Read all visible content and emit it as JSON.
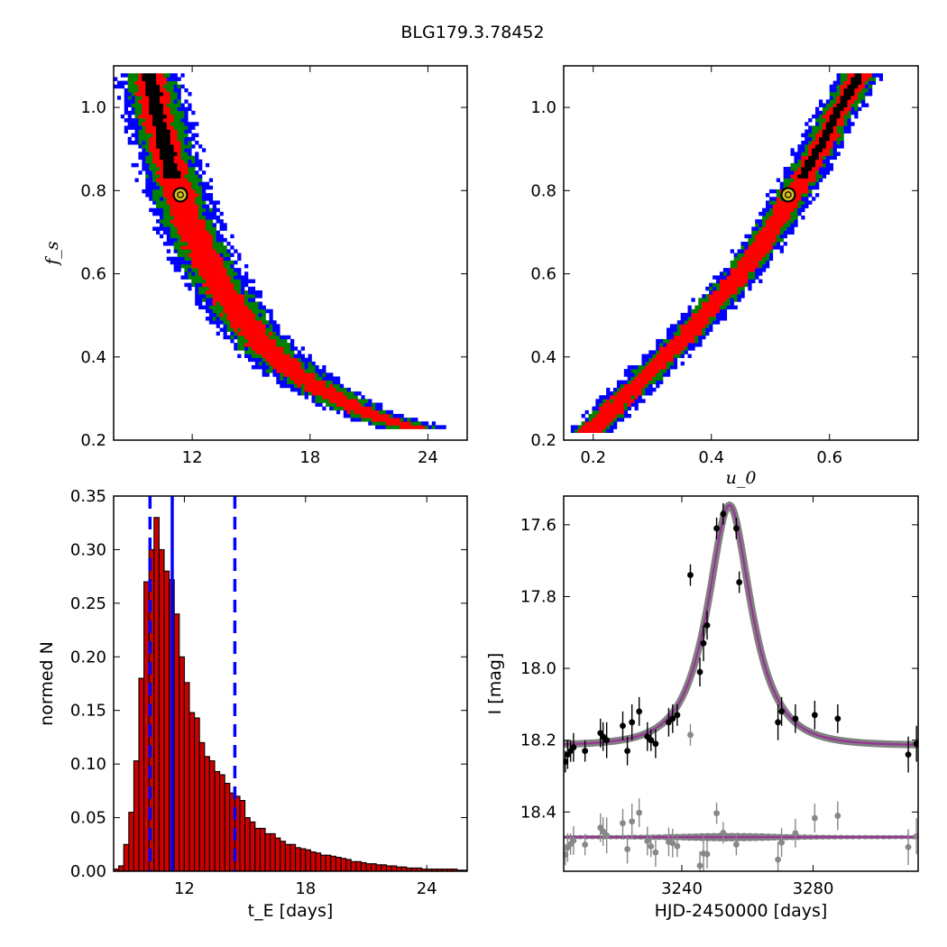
{
  "figure": {
    "title": "BLG179.3.78452"
  },
  "chart_data": [
    {
      "id": "fs_vs_tE",
      "type": "heatmap",
      "title": "",
      "xlabel": "",
      "ylabel": "f_s",
      "xlim": [
        8.0,
        26.0
      ],
      "ylim": [
        0.2,
        1.1
      ],
      "xticks": [
        12,
        18,
        24
      ],
      "yticks": [
        0.2,
        0.4,
        0.6,
        0.8,
        1.0
      ],
      "xtick_labels": [
        "12",
        "18",
        "24"
      ],
      "ytick_labels": [
        "0.2",
        "0.4",
        "0.6",
        "0.8",
        "1.0"
      ],
      "levels": [
        "black",
        "red",
        "green",
        "blue"
      ],
      "level_colors": [
        "#000000",
        "#ff0000",
        "#008000",
        "#0000ff"
      ],
      "ridge": [
        [
          9.8,
          1.08
        ],
        [
          10.4,
          0.95
        ],
        [
          11.0,
          0.84
        ],
        [
          11.6,
          0.75
        ],
        [
          12.4,
          0.66
        ],
        [
          13.3,
          0.58
        ],
        [
          14.4,
          0.5
        ],
        [
          15.6,
          0.43
        ],
        [
          17.0,
          0.37
        ],
        [
          18.6,
          0.32
        ],
        [
          20.2,
          0.28
        ],
        [
          21.8,
          0.25
        ],
        [
          23.2,
          0.23
        ]
      ],
      "widths": {
        "black": 0.35,
        "red": 0.75,
        "green": 1.15,
        "blue": 1.6
      },
      "best_fit": {
        "x": 11.4,
        "y": 0.79
      }
    },
    {
      "id": "fs_vs_u0",
      "type": "heatmap",
      "title": "",
      "xlabel": "u_0",
      "ylabel": "",
      "xlim": [
        0.15,
        0.75
      ],
      "ylim": [
        0.2,
        1.1
      ],
      "xticks": [
        0.2,
        0.4,
        0.6
      ],
      "yticks": [
        0.2,
        0.4,
        0.6,
        0.8,
        1.0
      ],
      "xtick_labels": [
        "0.2",
        "0.4",
        "0.6"
      ],
      "ytick_labels": [
        "0.2",
        "0.4",
        "0.6",
        "0.8",
        "1.0"
      ],
      "levels": [
        "black",
        "red",
        "green",
        "blue"
      ],
      "level_colors": [
        "#000000",
        "#ff0000",
        "#008000",
        "#0000ff"
      ],
      "ridge": [
        [
          0.195,
          0.22
        ],
        [
          0.25,
          0.3
        ],
        [
          0.3,
          0.37
        ],
        [
          0.35,
          0.44
        ],
        [
          0.4,
          0.52
        ],
        [
          0.45,
          0.6
        ],
        [
          0.5,
          0.7
        ],
        [
          0.55,
          0.82
        ],
        [
          0.6,
          0.95
        ],
        [
          0.65,
          1.08
        ]
      ],
      "widths": {
        "black": 0.008,
        "red": 0.018,
        "green": 0.026,
        "blue": 0.036
      },
      "best_fit": {
        "x": 0.53,
        "y": 0.79
      }
    },
    {
      "id": "tE_histogram",
      "type": "bar",
      "title": "",
      "xlabel": "t_E [days]",
      "ylabel": "normed N",
      "xlim": [
        8.5,
        26.0
      ],
      "ylim": [
        0.0,
        0.35
      ],
      "xticks": [
        12,
        18,
        24
      ],
      "yticks": [
        0.0,
        0.05,
        0.1,
        0.15,
        0.2,
        0.25,
        0.3,
        0.35
      ],
      "xtick_labels": [
        "12",
        "18",
        "24"
      ],
      "ytick_labels": [
        "0.00",
        "0.05",
        "0.10",
        "0.15",
        "0.20",
        "0.25",
        "0.30",
        "0.35"
      ],
      "bin_start": 8.5,
      "bin_width": 0.25,
      "values": [
        0.002,
        0.005,
        0.025,
        0.055,
        0.103,
        0.18,
        0.27,
        0.3,
        0.33,
        0.3,
        0.28,
        0.272,
        0.24,
        0.2,
        0.176,
        0.148,
        0.143,
        0.12,
        0.107,
        0.103,
        0.093,
        0.09,
        0.082,
        0.073,
        0.07,
        0.066,
        0.05,
        0.046,
        0.04,
        0.04,
        0.035,
        0.035,
        0.031,
        0.028,
        0.025,
        0.025,
        0.022,
        0.021,
        0.02,
        0.018,
        0.017,
        0.015,
        0.015,
        0.014,
        0.013,
        0.012,
        0.011,
        0.009,
        0.009,
        0.008,
        0.007,
        0.007,
        0.006,
        0.006,
        0.005,
        0.005,
        0.004,
        0.004,
        0.003,
        0.003,
        0.003,
        0.002,
        0.002,
        0.002,
        0.002,
        0.002,
        0.002,
        0.002,
        0.001,
        0.001
      ],
      "bar_color": "#cc0000",
      "median": 11.4,
      "lower": 10.3,
      "upper": 14.5,
      "line_color": "#0000ff"
    },
    {
      "id": "light_curve",
      "type": "scatter",
      "title": "",
      "xlabel": "HJD-2450000 [days]",
      "ylabel": "I [mag]",
      "xlim": [
        3204,
        3312
      ],
      "ylim": [
        18.565,
        17.52
      ],
      "xticks": [
        3240,
        3280
      ],
      "yticks": [
        17.6,
        17.8,
        18.0,
        18.2,
        18.4
      ],
      "xtick_labels": [
        "3240",
        "3280"
      ],
      "ytick_labels": [
        "17.6",
        "17.8",
        "18.0",
        "18.2",
        "18.4"
      ],
      "model": {
        "t0": 3254.5,
        "tE": 11.4,
        "u0": 0.53,
        "fs": 0.79,
        "baseline": 18.215,
        "color": "#993399",
        "band_color": "#808080"
      },
      "residual_offset": 18.47,
      "data": [
        [
          3204.5,
          18.26,
          0.03
        ],
        [
          3205.2,
          18.24,
          0.04
        ],
        [
          3206.1,
          18.23,
          0.03
        ],
        [
          3207.0,
          18.22,
          0.04
        ],
        [
          3210.5,
          18.23,
          0.03
        ],
        [
          3215.2,
          18.18,
          0.04
        ],
        [
          3216.0,
          18.19,
          0.04
        ],
        [
          3217.1,
          18.2,
          0.05
        ],
        [
          3222.0,
          18.16,
          0.04
        ],
        [
          3223.4,
          18.23,
          0.04
        ],
        [
          3224.8,
          18.15,
          0.05
        ],
        [
          3227.0,
          18.12,
          0.04
        ],
        [
          3229.5,
          18.19,
          0.04
        ],
        [
          3230.6,
          18.2,
          0.03
        ],
        [
          3232.0,
          18.21,
          0.04
        ],
        [
          3236.0,
          18.15,
          0.04
        ],
        [
          3237.2,
          18.14,
          0.04
        ],
        [
          3238.6,
          18.13,
          0.03
        ],
        [
          3242.6,
          17.74,
          0.03
        ],
        [
          3245.5,
          18.01,
          0.04
        ],
        [
          3246.6,
          17.93,
          0.05
        ],
        [
          3247.7,
          17.88,
          0.04
        ],
        [
          3250.6,
          17.61,
          0.03
        ],
        [
          3252.6,
          17.57,
          0.03
        ],
        [
          3256.6,
          17.61,
          0.03
        ],
        [
          3257.5,
          17.76,
          0.03
        ],
        [
          3269.3,
          18.15,
          0.05
        ],
        [
          3270.4,
          18.12,
          0.04
        ],
        [
          3274.6,
          18.14,
          0.04
        ],
        [
          3280.5,
          18.13,
          0.04
        ],
        [
          3287.5,
          18.14,
          0.04
        ],
        [
          3309.0,
          18.24,
          0.05
        ],
        [
          3311.5,
          18.21,
          0.05
        ]
      ]
    }
  ]
}
